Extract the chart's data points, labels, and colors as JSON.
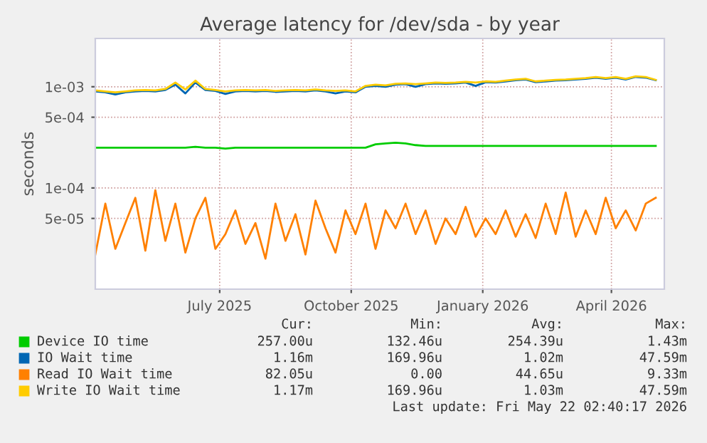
{
  "chart_data": {
    "type": "line",
    "title": "Average latency for /dev/sda - by year",
    "ylabel": "seconds",
    "log": "y",
    "grid": true,
    "legend": "bottom",
    "marker": "none",
    "line_style": "solid",
    "xlim": [
      "2025-04-20",
      "2026-05-23"
    ],
    "xticks": [
      {
        "value": "2025-07-16",
        "label": "July 2025"
      },
      {
        "value": "2025-10-16",
        "label": "October 2025"
      },
      {
        "value": "2026-01-16",
        "label": "January 2026"
      },
      {
        "value": "2026-04-16",
        "label": "April 2026"
      }
    ],
    "ylim": [
      1e-05,
      0.003
    ],
    "yticks": [
      {
        "value": 5e-05,
        "label": "5e-05"
      },
      {
        "value": 0.0001,
        "label": "1e-04"
      },
      {
        "value": 0.0005,
        "label": "5e-04"
      },
      {
        "value": 0.001,
        "label": "1e-03"
      }
    ],
    "x": [
      "2025-04-20",
      "2025-04-27",
      "2025-05-04",
      "2025-05-11",
      "2025-05-18",
      "2025-05-25",
      "2025-06-01",
      "2025-06-08",
      "2025-06-15",
      "2025-06-22",
      "2025-06-29",
      "2025-07-06",
      "2025-07-13",
      "2025-07-20",
      "2025-07-27",
      "2025-08-03",
      "2025-08-10",
      "2025-08-17",
      "2025-08-24",
      "2025-08-31",
      "2025-09-07",
      "2025-09-14",
      "2025-09-21",
      "2025-09-28",
      "2025-10-05",
      "2025-10-12",
      "2025-10-19",
      "2025-10-26",
      "2025-11-02",
      "2025-11-09",
      "2025-11-16",
      "2025-11-23",
      "2025-11-30",
      "2025-12-07",
      "2025-12-14",
      "2025-12-21",
      "2025-12-28",
      "2026-01-04",
      "2026-01-11",
      "2026-01-18",
      "2026-01-25",
      "2026-02-01",
      "2026-02-08",
      "2026-02-15",
      "2026-02-22",
      "2026-03-01",
      "2026-03-08",
      "2026-03-15",
      "2026-03-22",
      "2026-03-29",
      "2026-04-05",
      "2026-04-12",
      "2026-04-19",
      "2026-04-26",
      "2026-05-03",
      "2026-05-10",
      "2026-05-17"
    ],
    "series": [
      {
        "name": "Device IO time",
        "color": "#00cc00",
        "values": [
          0.00025,
          0.00025,
          0.00025,
          0.00025,
          0.00025,
          0.00025,
          0.00025,
          0.00025,
          0.00025,
          0.00025,
          0.000255,
          0.00025,
          0.00025,
          0.000245,
          0.00025,
          0.00025,
          0.00025,
          0.00025,
          0.00025,
          0.00025,
          0.00025,
          0.00025,
          0.00025,
          0.00025,
          0.00025,
          0.00025,
          0.00025,
          0.00025,
          0.00027,
          0.000275,
          0.00028,
          0.000275,
          0.000265,
          0.00026,
          0.00026,
          0.00026,
          0.00026,
          0.00026,
          0.00026,
          0.00026,
          0.00026,
          0.00026,
          0.00026,
          0.00026,
          0.00026,
          0.00026,
          0.00026,
          0.00026,
          0.00026,
          0.00026,
          0.00026,
          0.00026,
          0.00026,
          0.00026,
          0.00026,
          0.00026,
          0.00026
        ]
      },
      {
        "name": "IO Wait time",
        "color": "#0066b3",
        "values": [
          0.0009,
          0.00088,
          0.00084,
          0.00088,
          0.0009,
          0.00091,
          0.0009,
          0.00093,
          0.00105,
          0.00086,
          0.0011,
          0.00093,
          0.00091,
          0.00085,
          0.0009,
          0.00091,
          0.0009,
          0.00091,
          0.00089,
          0.0009,
          0.00091,
          0.0009,
          0.00092,
          0.0009,
          0.00086,
          0.0009,
          0.00088,
          0.001,
          0.00102,
          0.001,
          0.00105,
          0.00106,
          0.001,
          0.00106,
          0.00108,
          0.00107,
          0.00108,
          0.0011,
          0.00102,
          0.00111,
          0.0011,
          0.00113,
          0.00116,
          0.00118,
          0.00111,
          0.00113,
          0.00115,
          0.00116,
          0.00118,
          0.0012,
          0.00123,
          0.0012,
          0.00123,
          0.00118,
          0.00125,
          0.00123,
          0.00116
        ]
      },
      {
        "name": "Read IO Wait time",
        "color": "#ff8000",
        "values": [
          2.2e-05,
          7e-05,
          2.5e-05,
          4.5e-05,
          8e-05,
          2.4e-05,
          9.5e-05,
          3e-05,
          7e-05,
          2.3e-05,
          5e-05,
          8e-05,
          2.5e-05,
          3.5e-05,
          6e-05,
          2.8e-05,
          4.5e-05,
          2e-05,
          7e-05,
          3e-05,
          5.5e-05,
          2.2e-05,
          7.5e-05,
          4e-05,
          2.3e-05,
          6e-05,
          3.5e-05,
          7e-05,
          2.5e-05,
          6e-05,
          4e-05,
          7e-05,
          3.5e-05,
          6e-05,
          2.8e-05,
          5e-05,
          3.5e-05,
          6.5e-05,
          3.3e-05,
          5e-05,
          3.5e-05,
          6e-05,
          3.3e-05,
          5.5e-05,
          3.2e-05,
          7e-05,
          3.5e-05,
          9e-05,
          3.3e-05,
          6e-05,
          3.5e-05,
          8e-05,
          4e-05,
          6e-05,
          3.8e-05,
          7e-05,
          8e-05
        ]
      },
      {
        "name": "Write IO Wait time",
        "color": "#ffcc00",
        "values": [
          0.00092,
          0.0009,
          0.00088,
          0.0009,
          0.00092,
          0.00093,
          0.00092,
          0.00095,
          0.0011,
          0.00094,
          0.00115,
          0.00095,
          0.00093,
          0.0009,
          0.00092,
          0.00093,
          0.00092,
          0.00093,
          0.00091,
          0.00092,
          0.00093,
          0.00092,
          0.00094,
          0.00092,
          0.00091,
          0.00092,
          0.0009,
          0.00102,
          0.00105,
          0.00103,
          0.00107,
          0.00108,
          0.00106,
          0.00108,
          0.0011,
          0.00109,
          0.0011,
          0.00112,
          0.0011,
          0.00113,
          0.00112,
          0.00115,
          0.00118,
          0.0012,
          0.00113,
          0.00115,
          0.00117,
          0.00118,
          0.0012,
          0.00122,
          0.00125,
          0.00122,
          0.00125,
          0.0012,
          0.00127,
          0.00125,
          0.00117
        ]
      }
    ],
    "annotations": [
      "Cur:",
      "Min:",
      "Avg:",
      "Max:",
      "257.00u",
      "132.46u",
      "254.39u",
      "1.43m",
      "1.16m",
      "169.96u",
      "1.02m",
      "47.59m",
      "82.05u",
      "0.00",
      "44.65u",
      "9.33m",
      "1.17m",
      "169.96u",
      "1.03m",
      "47.59m",
      "Last update: Fri May 22 02:40:17 2026"
    ]
  }
}
